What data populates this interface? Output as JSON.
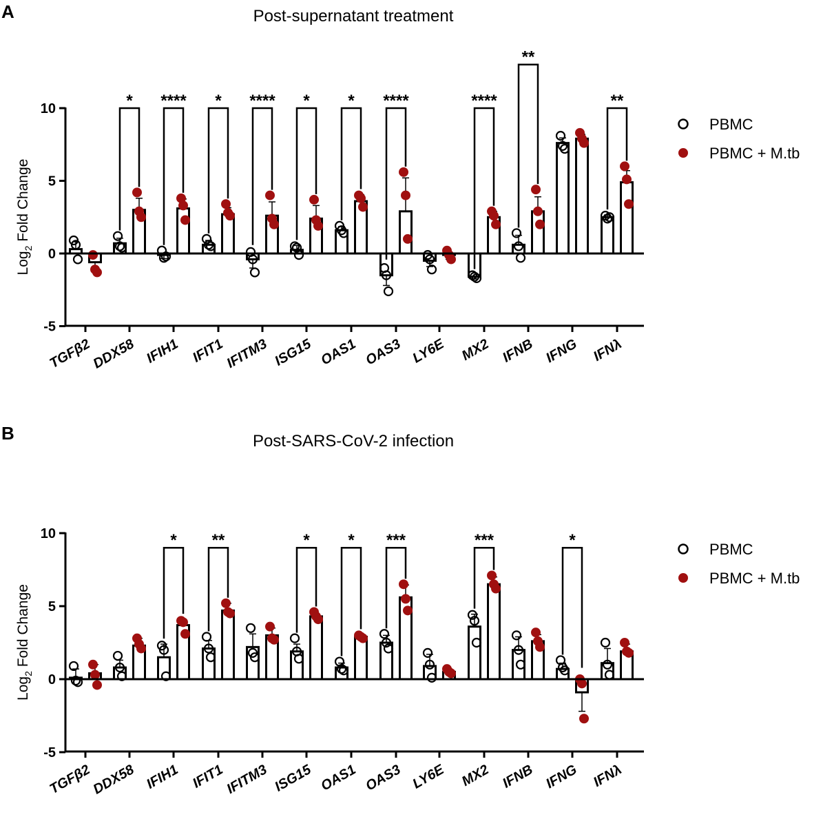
{
  "colors": {
    "pbmc": "#000000",
    "mtb": "#a01010",
    "axis": "#000000"
  },
  "chart_data": [
    {
      "panel_letter": "A",
      "type": "bar",
      "title": "Post-supernatant treatment",
      "ylabel": "Log",
      "ylabel_sub": "2",
      "ylabel_rest": " Fold Change",
      "ylim": [
        -5,
        10
      ],
      "yticks": [
        -5,
        0,
        5,
        10
      ],
      "ytick_labels": [
        "-5",
        "0",
        "5",
        "10"
      ],
      "categories": [
        "TGFβ2",
        "DDX58",
        "IFIH1",
        "IFIT1",
        "IFITM3",
        "ISG15",
        "OAS1",
        "OAS3",
        "LY6E",
        "MX2",
        "IFNB",
        "IFNG",
        "IFNλ"
      ],
      "legend": [
        "PBMC",
        "PBMC + M.tb"
      ],
      "series": [
        {
          "name": "PBMC",
          "marker": "open-circle",
          "values": [
            0.3,
            0.7,
            -0.1,
            0.6,
            -0.4,
            0.25,
            1.6,
            -1.5,
            -0.5,
            -1.6,
            0.6,
            7.6,
            2.5
          ],
          "errors": [
            0.5,
            0.35,
            0.25,
            0.3,
            0.6,
            0.3,
            0.25,
            0.7,
            0.4,
            0.15,
            0.65,
            0.35,
            0.15
          ],
          "points": [
            [
              0.9,
              0.6,
              -0.4
            ],
            [
              1.2,
              0.5,
              0.4
            ],
            [
              0.2,
              -0.3,
              -0.2
            ],
            [
              1.0,
              0.6,
              0.5
            ],
            [
              0.1,
              -0.4,
              -1.3
            ],
            [
              0.5,
              0.4,
              -0.1
            ],
            [
              1.9,
              1.6,
              1.4
            ],
            [
              -1.0,
              -1.5,
              -2.6
            ],
            [
              -0.1,
              -0.4,
              -1.1
            ],
            [
              -1.5,
              -1.6,
              -1.7
            ],
            [
              1.4,
              0.5,
              -0.3
            ],
            [
              8.1,
              7.4,
              7.2
            ],
            [
              2.6,
              2.4,
              2.5
            ]
          ]
        },
        {
          "name": "PBMC + M.tb",
          "marker": "filled-circle",
          "values": [
            -0.6,
            3.0,
            3.1,
            2.7,
            2.6,
            2.4,
            3.6,
            2.9,
            -0.1,
            2.5,
            2.9,
            7.9,
            4.9
          ],
          "errors": [
            0.6,
            0.8,
            0.65,
            0.45,
            0.95,
            0.9,
            0.45,
            2.3,
            0.3,
            0.4,
            1.0,
            0.3,
            0.8
          ],
          "points": [
            [
              -0.1,
              -1.1,
              -1.3
            ],
            [
              4.2,
              2.9,
              2.5
            ],
            [
              3.8,
              3.3,
              2.3
            ],
            [
              3.4,
              2.8,
              2.6
            ],
            [
              4.0,
              2.4,
              2.0
            ],
            [
              3.7,
              2.3,
              1.9
            ],
            [
              4.0,
              3.8,
              3.2
            ],
            [
              5.6,
              4.0,
              1.0
            ],
            [
              0.2,
              -0.1,
              -0.4
            ],
            [
              2.9,
              2.6,
              2.0
            ],
            [
              4.4,
              2.9,
              2.0
            ],
            [
              8.3,
              7.9,
              7.6
            ],
            [
              6.0,
              5.1,
              3.4
            ]
          ]
        }
      ],
      "significance": [
        {
          "category": "DDX58",
          "label": "*",
          "y": 10
        },
        {
          "category": "IFIH1",
          "label": "****",
          "y": 10
        },
        {
          "category": "IFIT1",
          "label": "*",
          "y": 10
        },
        {
          "category": "IFITM3",
          "label": "****",
          "y": 10
        },
        {
          "category": "ISG15",
          "label": "*",
          "y": 10
        },
        {
          "category": "OAS1",
          "label": "*",
          "y": 10
        },
        {
          "category": "OAS3",
          "label": "****",
          "y": 10
        },
        {
          "category": "MX2",
          "label": "****",
          "y": 10
        },
        {
          "category": "IFNB",
          "label": "**",
          "y": 13
        },
        {
          "category": "IFNλ",
          "label": "**",
          "y": 10
        }
      ]
    },
    {
      "panel_letter": "B",
      "type": "bar",
      "title": "Post-SARS-CoV-2 infection",
      "ylabel": "Log",
      "ylabel_sub": "2",
      "ylabel_rest": " Fold Change",
      "ylim": [
        -5,
        10
      ],
      "yticks": [
        -5,
        0,
        5,
        10
      ],
      "ytick_labels": [
        "-5",
        "0",
        "5",
        "10"
      ],
      "categories": [
        "TGFβ2",
        "DDX58",
        "IFIH1",
        "IFIT1",
        "IFITM3",
        "ISG15",
        "OAS1",
        "OAS3",
        "LY6E",
        "MX2",
        "IFNB",
        "IFNG",
        "IFNλ"
      ],
      "legend": [
        "PBMC",
        "PBMC + M.tb"
      ],
      "series": [
        {
          "name": "PBMC",
          "marker": "open-circle",
          "values": [
            0.1,
            0.8,
            1.5,
            2.1,
            2.2,
            1.9,
            0.8,
            2.5,
            0.9,
            3.6,
            2.0,
            0.7,
            1.1
          ],
          "errors": [
            0.6,
            0.5,
            0.9,
            0.55,
            0.9,
            0.5,
            0.3,
            0.5,
            0.8,
            0.85,
            0.9,
            0.4,
            1.0
          ],
          "points": [
            [
              0.9,
              -0.1,
              -0.2
            ],
            [
              1.6,
              0.8,
              0.2
            ],
            [
              2.3,
              2.0,
              0.2
            ],
            [
              2.9,
              2.1,
              1.5
            ],
            [
              3.5,
              1.8,
              1.5
            ],
            [
              2.8,
              1.9,
              1.4
            ],
            [
              1.2,
              0.7,
              0.6
            ],
            [
              3.1,
              2.5,
              2.1
            ],
            [
              1.8,
              1.0,
              0.1
            ],
            [
              4.4,
              4.0,
              2.5
            ],
            [
              3.0,
              2.0,
              1.0
            ],
            [
              1.3,
              0.8,
              0.6
            ],
            [
              2.5,
              1.0,
              0.3
            ]
          ]
        },
        {
          "name": "PBMC + M.tb",
          "marker": "filled-circle",
          "values": [
            0.4,
            2.3,
            3.7,
            4.7,
            3.0,
            4.3,
            2.9,
            5.6,
            0.5,
            6.5,
            2.6,
            -0.9,
            1.9
          ],
          "errors": [
            0.6,
            0.5,
            0.4,
            0.5,
            0.5,
            0.2,
            0.15,
            0.85,
            0.15,
            0.5,
            0.45,
            1.3,
            0.5
          ],
          "points": [
            [
              1.0,
              0.3,
              -0.4
            ],
            [
              2.8,
              2.4,
              2.1
            ],
            [
              4.0,
              3.9,
              3.1
            ],
            [
              5.2,
              4.6,
              4.5
            ],
            [
              3.6,
              2.8,
              2.7
            ],
            [
              4.6,
              4.3,
              4.1
            ],
            [
              3.0,
              2.9,
              2.8
            ],
            [
              6.5,
              5.5,
              4.7
            ],
            [
              0.7,
              0.5,
              0.4
            ],
            [
              7.1,
              6.5,
              6.2
            ],
            [
              3.2,
              2.6,
              2.2
            ],
            [
              0.0,
              -0.3,
              -2.7
            ],
            [
              2.5,
              1.9,
              1.8
            ]
          ]
        }
      ],
      "significance": [
        {
          "category": "IFIH1",
          "label": "*",
          "y": 9
        },
        {
          "category": "IFIT1",
          "label": "**",
          "y": 9
        },
        {
          "category": "ISG15",
          "label": "*",
          "y": 9
        },
        {
          "category": "OAS1",
          "label": "*",
          "y": 9
        },
        {
          "category": "OAS3",
          "label": "***",
          "y": 9
        },
        {
          "category": "MX2",
          "label": "***",
          "y": 9
        },
        {
          "category": "IFNG",
          "label": "*",
          "y": 9
        }
      ]
    }
  ]
}
